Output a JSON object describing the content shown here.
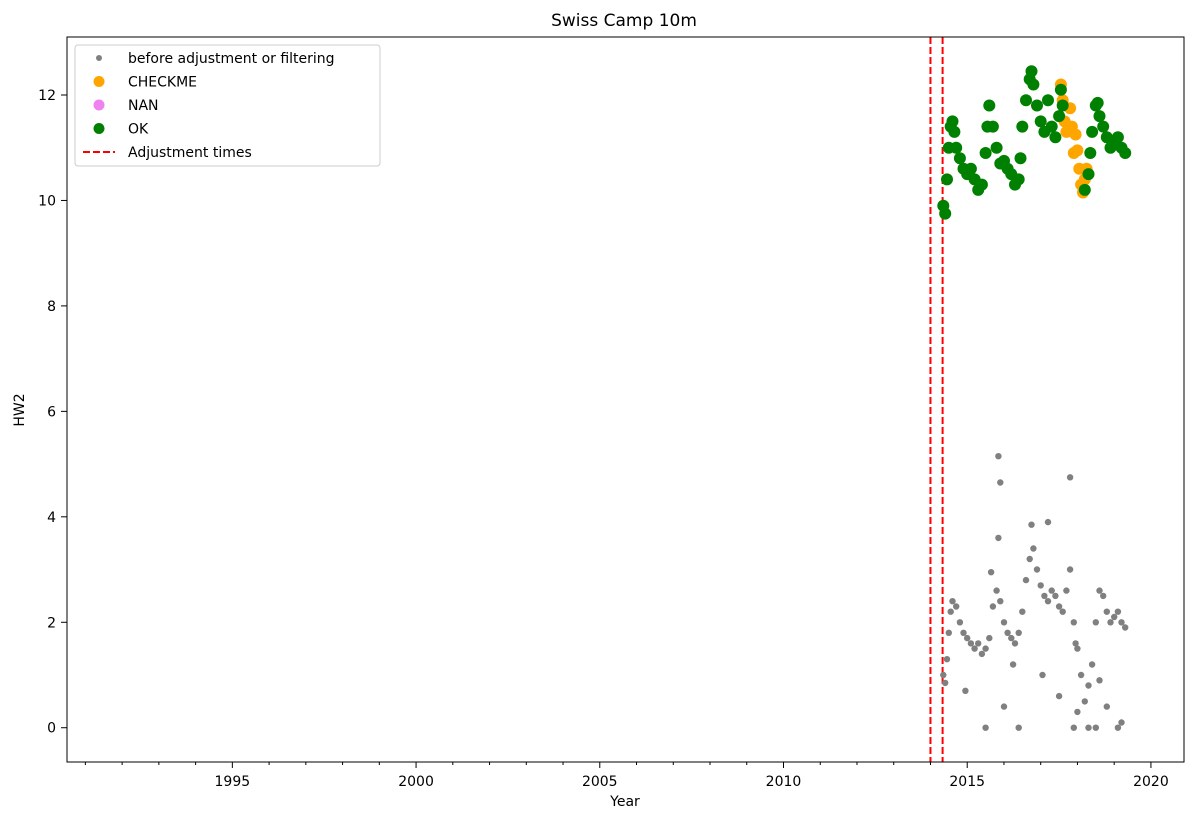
{
  "chart_data": {
    "type": "scatter",
    "title": "Swiss Camp 10m",
    "xlabel": "Year",
    "ylabel": "HW2",
    "xlim": [
      1990.5,
      2020.9
    ],
    "ylim": [
      -0.65,
      13.1
    ],
    "x_ticks": [
      1995,
      2000,
      2005,
      2010,
      2015,
      2020
    ],
    "x_tick_labels": [
      "1995",
      "2000",
      "2005",
      "2010",
      "2015",
      "2020"
    ],
    "y_ticks": [
      0,
      2,
      4,
      6,
      8,
      10,
      12
    ],
    "y_tick_labels": [
      "0",
      "2",
      "4",
      "6",
      "8",
      "10",
      "12"
    ],
    "grid": false,
    "legend_position": "top-left",
    "legend": [
      {
        "label": "before adjustment or filtering",
        "color": "#808080",
        "marker": "small-dot"
      },
      {
        "label": "CHECKME",
        "color": "#FFA500",
        "marker": "dot"
      },
      {
        "label": "NAN",
        "color": "#EE82EE",
        "marker": "dot"
      },
      {
        "label": "OK",
        "color": "#008000",
        "marker": "dot"
      },
      {
        "label": "Adjustment times",
        "color": "#FF0000",
        "marker": "dashed-line"
      }
    ],
    "adjustment_times": [
      2014.0,
      2014.33
    ],
    "series": [
      {
        "name": "before adjustment or filtering",
        "color": "#808080",
        "points": [
          [
            2014.35,
            1.0
          ],
          [
            2014.4,
            0.85
          ],
          [
            2014.45,
            1.3
          ],
          [
            2014.5,
            1.8
          ],
          [
            2014.55,
            2.2
          ],
          [
            2014.6,
            2.4
          ],
          [
            2014.7,
            2.3
          ],
          [
            2014.8,
            2.0
          ],
          [
            2014.9,
            1.8
          ],
          [
            2015.0,
            1.7
          ],
          [
            2015.1,
            1.6
          ],
          [
            2015.2,
            1.5
          ],
          [
            2015.3,
            1.6
          ],
          [
            2015.4,
            1.4
          ],
          [
            2015.5,
            1.5
          ],
          [
            2015.6,
            1.7
          ],
          [
            2015.7,
            2.3
          ],
          [
            2015.8,
            2.6
          ],
          [
            2015.9,
            2.4
          ],
          [
            2016.0,
            2.0
          ],
          [
            2016.1,
            1.8
          ],
          [
            2016.2,
            1.7
          ],
          [
            2016.3,
            1.6
          ],
          [
            2016.4,
            1.8
          ],
          [
            2016.5,
            2.2
          ],
          [
            2016.6,
            2.8
          ],
          [
            2016.7,
            3.2
          ],
          [
            2016.8,
            3.4
          ],
          [
            2016.9,
            3.0
          ],
          [
            2017.0,
            2.7
          ],
          [
            2017.1,
            2.5
          ],
          [
            2017.2,
            2.4
          ],
          [
            2017.3,
            2.6
          ],
          [
            2017.4,
            2.5
          ],
          [
            2017.5,
            2.3
          ],
          [
            2017.6,
            2.2
          ],
          [
            2017.7,
            2.6
          ],
          [
            2017.8,
            3.0
          ],
          [
            2017.9,
            2.0
          ],
          [
            2018.0,
            1.5
          ],
          [
            2018.1,
            1.0
          ],
          [
            2018.2,
            0.5
          ],
          [
            2018.3,
            0.8
          ],
          [
            2018.4,
            1.2
          ],
          [
            2018.5,
            2.0
          ],
          [
            2018.6,
            2.6
          ],
          [
            2018.7,
            2.5
          ],
          [
            2018.8,
            2.2
          ],
          [
            2018.9,
            2.0
          ],
          [
            2019.0,
            2.1
          ],
          [
            2019.1,
            2.2
          ],
          [
            2019.2,
            2.0
          ],
          [
            2019.3,
            1.9
          ],
          [
            2015.85,
            5.15
          ],
          [
            2015.9,
            4.65
          ],
          [
            2017.8,
            4.75
          ],
          [
            2015.85,
            3.6
          ],
          [
            2017.2,
            3.9
          ],
          [
            2015.5,
            0.0
          ],
          [
            2016.4,
            0.0
          ],
          [
            2017.9,
            0.0
          ],
          [
            2018.3,
            0.0
          ],
          [
            2018.5,
            0.0
          ],
          [
            2019.1,
            0.0
          ],
          [
            2014.95,
            0.7
          ],
          [
            2016.0,
            0.4
          ],
          [
            2017.5,
            0.6
          ],
          [
            2018.0,
            0.3
          ],
          [
            2018.8,
            0.4
          ],
          [
            2019.2,
            0.1
          ],
          [
            2016.25,
            1.2
          ],
          [
            2017.05,
            1.0
          ],
          [
            2017.95,
            1.6
          ],
          [
            2018.6,
            0.9
          ],
          [
            2015.65,
            2.95
          ],
          [
            2016.75,
            3.85
          ]
        ]
      },
      {
        "name": "CHECKME",
        "color": "#FFA500",
        "points": [
          [
            2017.55,
            12.2
          ],
          [
            2017.6,
            11.9
          ],
          [
            2017.65,
            11.5
          ],
          [
            2017.7,
            11.3
          ],
          [
            2017.8,
            11.75
          ],
          [
            2017.85,
            11.4
          ],
          [
            2017.95,
            11.25
          ],
          [
            2017.9,
            10.9
          ],
          [
            2018.0,
            10.95
          ],
          [
            2018.05,
            10.6
          ],
          [
            2018.1,
            10.3
          ],
          [
            2018.15,
            10.15
          ],
          [
            2018.2,
            10.4
          ],
          [
            2018.25,
            10.6
          ]
        ]
      },
      {
        "name": "NAN",
        "color": "#EE82EE",
        "points": []
      },
      {
        "name": "OK",
        "color": "#008000",
        "points": [
          [
            2014.35,
            9.9
          ],
          [
            2014.4,
            9.75
          ],
          [
            2014.45,
            10.4
          ],
          [
            2014.5,
            11.0
          ],
          [
            2014.55,
            11.4
          ],
          [
            2014.6,
            11.5
          ],
          [
            2014.65,
            11.3
          ],
          [
            2014.7,
            11.0
          ],
          [
            2014.8,
            10.8
          ],
          [
            2014.9,
            10.6
          ],
          [
            2015.0,
            10.5
          ],
          [
            2015.1,
            10.6
          ],
          [
            2015.2,
            10.4
          ],
          [
            2015.3,
            10.2
          ],
          [
            2015.4,
            10.3
          ],
          [
            2015.5,
            10.9
          ],
          [
            2015.55,
            11.4
          ],
          [
            2015.6,
            11.8
          ],
          [
            2015.7,
            11.4
          ],
          [
            2015.8,
            11.0
          ],
          [
            2015.9,
            10.7
          ],
          [
            2016.0,
            10.75
          ],
          [
            2016.1,
            10.6
          ],
          [
            2016.2,
            10.5
          ],
          [
            2016.3,
            10.3
          ],
          [
            2016.4,
            10.4
          ],
          [
            2016.45,
            10.8
          ],
          [
            2016.5,
            11.4
          ],
          [
            2016.6,
            11.9
          ],
          [
            2016.7,
            12.3
          ],
          [
            2016.75,
            12.45
          ],
          [
            2016.8,
            12.2
          ],
          [
            2016.9,
            11.8
          ],
          [
            2017.0,
            11.5
          ],
          [
            2017.1,
            11.3
          ],
          [
            2017.2,
            11.9
          ],
          [
            2017.3,
            11.4
          ],
          [
            2017.4,
            11.2
          ],
          [
            2017.5,
            11.6
          ],
          [
            2017.55,
            12.1
          ],
          [
            2017.6,
            11.8
          ],
          [
            2018.2,
            10.2
          ],
          [
            2018.3,
            10.5
          ],
          [
            2018.35,
            10.9
          ],
          [
            2018.4,
            11.3
          ],
          [
            2018.5,
            11.8
          ],
          [
            2018.55,
            11.85
          ],
          [
            2018.6,
            11.6
          ],
          [
            2018.7,
            11.4
          ],
          [
            2018.8,
            11.2
          ],
          [
            2018.9,
            11.0
          ],
          [
            2019.0,
            11.1
          ],
          [
            2019.1,
            11.2
          ],
          [
            2019.2,
            11.0
          ],
          [
            2019.3,
            10.9
          ]
        ]
      }
    ]
  }
}
